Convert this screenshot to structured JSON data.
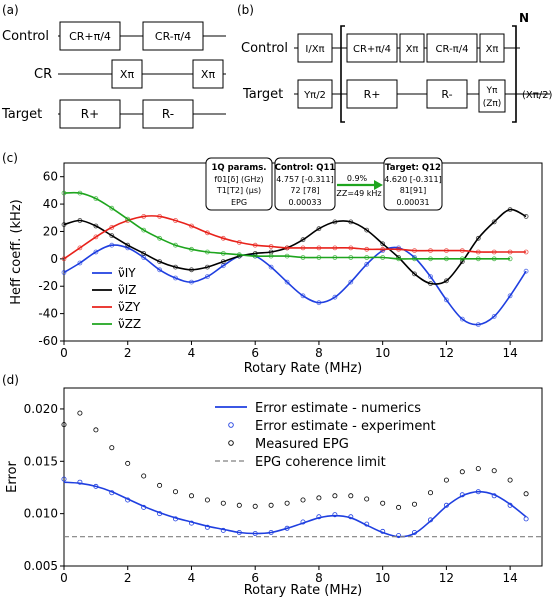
{
  "panel_a": {
    "label": "(a)",
    "rows": [
      "Control",
      "CR",
      "Target"
    ],
    "gates": {
      "cr_plus": "CR+π/4",
      "cr_minus": "CR-π/4",
      "x1": "Xπ",
      "x2": "Xπ",
      "r_plus": "R+",
      "r_minus": "R-"
    }
  },
  "panel_b": {
    "label": "(b)",
    "rows": [
      "Control",
      "Target"
    ],
    "repeat_label": "N",
    "gates": {
      "ctrl_init": "I/Xπ",
      "tgt_init": "Yπ/2",
      "cr_plus": "CR+π/4",
      "x1": "Xπ",
      "cr_minus": "CR-π/4",
      "x2": "Xπ",
      "r_plus": "R+",
      "r_minus": "R-",
      "y_pi": "Yπ",
      "z_pi": "(Zπ)",
      "final": "(Xπ/2)"
    }
  },
  "panel_c": {
    "label": "(c)",
    "params_box": {
      "title": "1Q params.",
      "line1": "f01[δ] (GHz)",
      "line2": "T1[T2] (μs)",
      "line3": "EPG"
    },
    "control_box": {
      "title": "Control: Q11",
      "line1": "4.757 [-0.311]",
      "line2": "72 [78]",
      "line3": "0.00033"
    },
    "target_box": {
      "title": "Target: Q12",
      "line1": "4.620 [-0.311]",
      "line2": "81[91]",
      "line3": "0.00031"
    },
    "arrow_top": "0.9%",
    "arrow_bottom": "ZZ=49 kHz"
  },
  "panel_d": {
    "label": "(d)"
  },
  "chart_data": [
    {
      "type": "line",
      "xlabel": "Rotary Rate (MHz)",
      "ylabel": "Heff coeff. (kHz)",
      "xlim": [
        0,
        15
      ],
      "ylim": [
        -60,
        70
      ],
      "xticks": [
        0,
        2,
        4,
        6,
        8,
        10,
        12,
        14
      ],
      "yticks": [
        -60,
        -40,
        -20,
        0,
        20,
        40,
        60
      ],
      "legend_position": "bottom-left",
      "series": [
        {
          "name": "ν̃IY",
          "color": "#1f3fe0",
          "x": [
            0,
            0.5,
            1,
            1.5,
            2,
            2.5,
            3,
            3.5,
            4,
            4.5,
            5,
            5.5,
            6,
            6.5,
            7,
            7.5,
            8,
            8.5,
            9,
            9.5,
            10,
            10.5,
            11,
            11.5,
            12,
            12.5,
            13,
            13.5,
            14,
            14.5
          ],
          "y": [
            -10,
            -3,
            5,
            10,
            8,
            1,
            -8,
            -14,
            -17,
            -13,
            -5,
            2,
            2,
            -6,
            -17,
            -27,
            -32,
            -28,
            -17,
            -4,
            6,
            8,
            1,
            -13,
            -30,
            -44,
            -48,
            -42,
            -27,
            -9
          ]
        },
        {
          "name": "ν̃IZ",
          "color": "#000000",
          "x": [
            0,
            0.5,
            1,
            1.5,
            2,
            2.5,
            3,
            3.5,
            4,
            4.5,
            5,
            5.5,
            6,
            6.5,
            7,
            7.5,
            8,
            8.5,
            9,
            9.5,
            10,
            10.5,
            11,
            11.5,
            12,
            12.5,
            13,
            13.5,
            14,
            14.5
          ],
          "y": [
            25,
            28,
            24,
            17,
            10,
            4,
            -2,
            -6,
            -8,
            -6,
            -2,
            2,
            4,
            5,
            8,
            14,
            22,
            27,
            27,
            21,
            11,
            1,
            -11,
            -18,
            -16,
            -2,
            15,
            27,
            36,
            31
          ]
        },
        {
          "name": "ν̃ZY",
          "color": "#e8221b",
          "x": [
            0,
            0.5,
            1,
            1.5,
            2,
            2.5,
            3,
            3.5,
            4,
            4.5,
            5,
            5.5,
            6,
            6.5,
            7,
            7.5,
            8,
            8.5,
            9,
            9.5,
            10,
            10.5,
            11,
            11.5,
            12,
            12.5,
            13,
            13.5,
            14,
            14.5
          ],
          "y": [
            0,
            8,
            16,
            23,
            28,
            31,
            31,
            28,
            24,
            19,
            15,
            12,
            10,
            9,
            8,
            8,
            8,
            8,
            8,
            7,
            7,
            7,
            6,
            6,
            6,
            6,
            5,
            5,
            5,
            5
          ]
        },
        {
          "name": "ν̃ZZ",
          "color": "#1ea51e",
          "x": [
            0,
            0.5,
            1,
            1.5,
            2,
            2.5,
            3,
            3.5,
            4,
            4.5,
            5,
            5.5,
            6,
            6.5,
            7,
            7.5,
            8,
            8.5,
            9,
            9.5,
            10,
            10.5,
            11,
            11.5,
            12,
            12.5,
            13,
            13.5,
            14
          ],
          "y": [
            48,
            48,
            44,
            37,
            29,
            21,
            15,
            10,
            7,
            5,
            4,
            3,
            2,
            2,
            2,
            1,
            1,
            1,
            1,
            1,
            1,
            0,
            0,
            0,
            0,
            0,
            0,
            0,
            0
          ]
        }
      ]
    },
    {
      "type": "line",
      "xlabel": "Rotary Rate (MHz)",
      "ylabel": "Error",
      "xlim": [
        0,
        15
      ],
      "ylim": [
        0.005,
        0.022
      ],
      "xticks": [
        0,
        2,
        4,
        6,
        8,
        10,
        12,
        14
      ],
      "yticks": [
        0.005,
        0.01,
        0.015,
        0.02
      ],
      "legend_position": "top-right",
      "series": [
        {
          "name": "Error estimate - numerics",
          "color": "#1f3fe0",
          "style": "line",
          "x": [
            0,
            0.5,
            1,
            1.5,
            2,
            2.5,
            3,
            3.5,
            4,
            4.5,
            5,
            5.5,
            6,
            6.5,
            7,
            7.5,
            8,
            8.5,
            9,
            9.5,
            10,
            10.5,
            11,
            11.5,
            12,
            12.5,
            13,
            13.5,
            14,
            14.5
          ],
          "y": [
            0.013,
            0.0129,
            0.0126,
            0.0121,
            0.0114,
            0.0107,
            0.0101,
            0.0096,
            0.0092,
            0.0088,
            0.0085,
            0.0082,
            0.0081,
            0.0082,
            0.0086,
            0.0091,
            0.0096,
            0.0098,
            0.0096,
            0.0089,
            0.0082,
            0.0078,
            0.0081,
            0.0093,
            0.0107,
            0.0117,
            0.0121,
            0.0118,
            0.0109,
            0.0097
          ]
        },
        {
          "name": "Error estimate - experiment",
          "color": "#1f3fe0",
          "style": "scatter",
          "x": [
            0,
            0.5,
            1,
            1.5,
            2,
            2.5,
            3,
            3.5,
            4,
            4.5,
            5,
            5.5,
            6,
            6.5,
            7,
            7.5,
            8,
            8.5,
            9,
            9.5,
            10,
            10.5,
            11,
            11.5,
            12,
            12.5,
            13,
            13.5,
            14,
            14.5
          ],
          "y": [
            0.0133,
            0.013,
            0.0126,
            0.012,
            0.0113,
            0.0106,
            0.01,
            0.0095,
            0.0091,
            0.0087,
            0.0084,
            0.0082,
            0.0081,
            0.0082,
            0.0086,
            0.0092,
            0.0097,
            0.0099,
            0.0097,
            0.009,
            0.0083,
            0.0079,
            0.0082,
            0.0094,
            0.0108,
            0.0118,
            0.0121,
            0.0117,
            0.0108,
            0.0095
          ]
        },
        {
          "name": "Measured EPG",
          "color": "#000000",
          "style": "scatter",
          "x": [
            0,
            0.5,
            1,
            1.5,
            2,
            2.5,
            3,
            3.5,
            4,
            4.5,
            5,
            5.5,
            6,
            6.5,
            7,
            7.5,
            8,
            8.5,
            9,
            9.5,
            10,
            10.5,
            11,
            11.5,
            12,
            12.5,
            13,
            13.5,
            14,
            14.5
          ],
          "y": [
            0.0185,
            0.0196,
            0.018,
            0.0163,
            0.0148,
            0.0136,
            0.0127,
            0.0121,
            0.0117,
            0.0113,
            0.011,
            0.0108,
            0.0107,
            0.0108,
            0.011,
            0.0113,
            0.0115,
            0.0117,
            0.0117,
            0.0114,
            0.011,
            0.0106,
            0.0109,
            0.012,
            0.0132,
            0.014,
            0.0143,
            0.0141,
            0.0132,
            0.0119
          ]
        },
        {
          "name": "EPG coherence limit",
          "color": "#808080",
          "style": "dashed",
          "x": [
            0,
            15
          ],
          "y": [
            0.0078,
            0.0078
          ]
        }
      ]
    }
  ]
}
